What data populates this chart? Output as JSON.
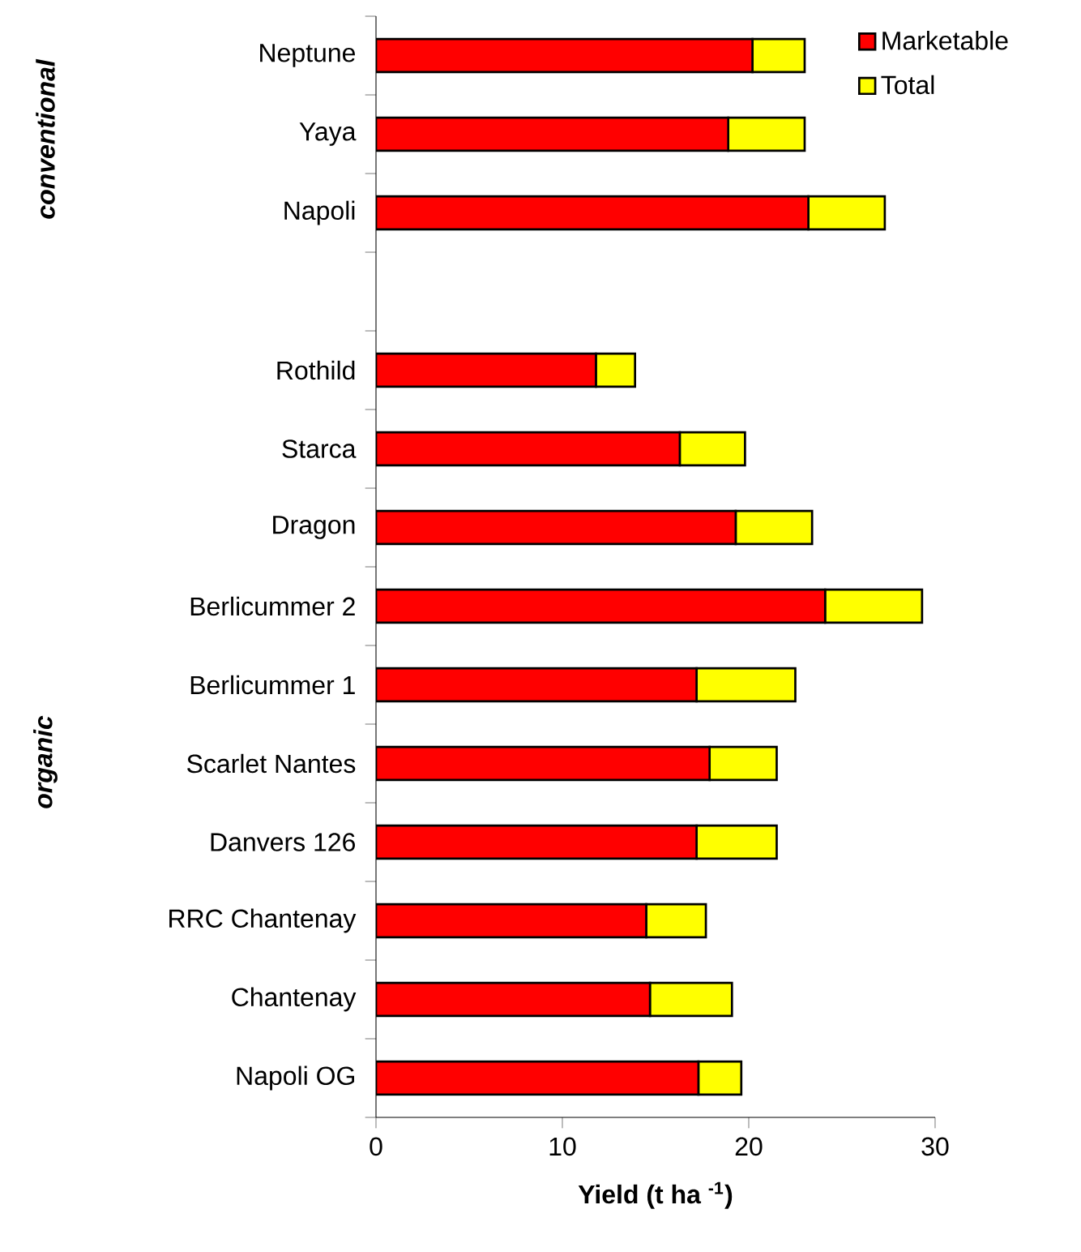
{
  "chart_data": {
    "type": "bar",
    "orientation": "horizontal",
    "stacked": true,
    "xlabel": "Yield (t ha $^{-1}$)",
    "categories": [
      "Neptune",
      "Yaya",
      "Napoli",
      null,
      "Rothild",
      "Starca",
      "Dragon",
      "Berlicummer 2",
      "Berlicummer 1",
      "Scarlet Nantes",
      "Danvers 126",
      "RRC Chantenay",
      "Chantenay",
      "Napoli OG"
    ],
    "series": [
      {
        "name": "Marketable",
        "color": "#ff0000",
        "values": [
          20.2,
          18.9,
          23.2,
          null,
          11.8,
          16.3,
          19.3,
          24.1,
          17.2,
          17.9,
          17.2,
          14.5,
          14.7,
          17.3
        ]
      },
      {
        "name": "Total",
        "color": "#ffff00",
        "values": [
          2.8,
          4.1,
          4.1,
          null,
          2.1,
          3.5,
          4.1,
          5.2,
          5.3,
          3.6,
          4.3,
          3.2,
          4.4,
          2.3
        ]
      }
    ],
    "xlim": [
      0,
      30
    ],
    "xticks": [
      0,
      10,
      20,
      30
    ],
    "legend": "top right",
    "annotations": [
      "conventional",
      "organic"
    ]
  }
}
